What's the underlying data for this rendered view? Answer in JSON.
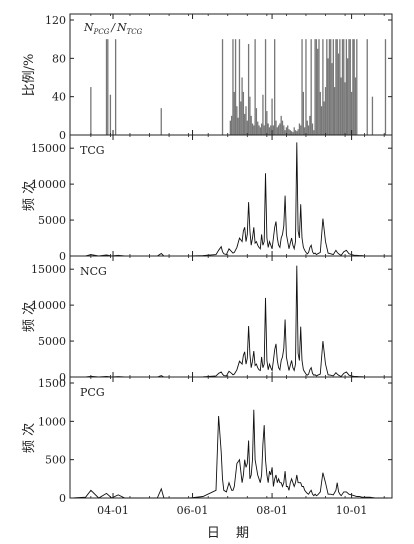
{
  "chart_data": [
    {
      "type": "bar",
      "panel": "ratio",
      "tag": "N_PCG / N_TCG",
      "tag_main_1": "N",
      "tag_sub_1": "PCG",
      "tag_sep": "/",
      "tag_main_2": "N",
      "tag_sub_2": "TCG",
      "ylabel": "比例/%",
      "ylim": [
        0,
        120
      ],
      "yticks": [
        0,
        40,
        80,
        120
      ],
      "ytick_labels": [
        "0",
        "40",
        "80",
        "120"
      ],
      "x_unit": "day-of-year (date axis)",
      "bar_color": "#777777",
      "x": [
        74,
        86,
        87,
        89,
        93,
        128,
        175,
        181,
        182,
        183,
        184,
        185,
        186,
        187,
        188,
        189,
        190,
        191,
        192,
        193,
        194,
        195,
        196,
        197,
        198,
        199,
        200,
        201,
        202,
        203,
        204,
        205,
        206,
        207,
        208,
        209,
        210,
        211,
        212,
        213,
        214,
        215,
        216,
        217,
        218,
        219,
        220,
        221,
        222,
        223,
        224,
        225,
        226,
        227,
        228,
        229,
        230,
        231,
        232,
        233,
        234,
        235,
        236,
        237,
        238,
        239,
        240,
        241,
        242,
        243,
        244,
        245,
        246,
        247,
        248,
        249,
        250,
        251,
        252,
        253,
        254,
        255,
        256,
        257,
        258,
        259,
        260,
        261,
        262,
        263,
        264,
        265,
        266,
        267,
        268,
        269,
        270,
        271,
        272,
        273,
        274,
        275,
        276,
        277,
        278,
        286,
        290,
        300
      ],
      "values": [
        50,
        100,
        100,
        42,
        100,
        28,
        100,
        15,
        20,
        100,
        45,
        100,
        30,
        18,
        100,
        35,
        60,
        45,
        22,
        30,
        15,
        95,
        40,
        20,
        12,
        10,
        100,
        28,
        14,
        10,
        8,
        12,
        42,
        10,
        100,
        25,
        12,
        8,
        10,
        38,
        10,
        100,
        15,
        8,
        10,
        12,
        20,
        15,
        10,
        5,
        8,
        10,
        6,
        5,
        4,
        3,
        8,
        5,
        4,
        6,
        12,
        10,
        100,
        45,
        8,
        100,
        15,
        10,
        20,
        100,
        12,
        5,
        100,
        100,
        90,
        100,
        45,
        30,
        100,
        35,
        50,
        100,
        80,
        100,
        100,
        75,
        100,
        50,
        100,
        100,
        85,
        100,
        60,
        100,
        100,
        55,
        100,
        80,
        100,
        100,
        45,
        100,
        100,
        60,
        100,
        100,
        40,
        100
      ]
    },
    {
      "type": "line",
      "panel": "TCG",
      "tag": "TCG",
      "ylabel": "频 次",
      "ylim": [
        0,
        16000
      ],
      "yticks": [
        0,
        5000,
        10000,
        15000
      ],
      "ytick_labels": [
        "0",
        "5000",
        "10000",
        "15000"
      ],
      "x": [
        60,
        70,
        74,
        80,
        86,
        90,
        95,
        100,
        110,
        120,
        125,
        128,
        130,
        140,
        150,
        160,
        170,
        172,
        174,
        175,
        176,
        178,
        180,
        182,
        183,
        184,
        186,
        188,
        190,
        191,
        192,
        193,
        194,
        195,
        196,
        197,
        198,
        199,
        200,
        201,
        202,
        203,
        204,
        205,
        206,
        207,
        208,
        209,
        210,
        211,
        212,
        213,
        214,
        215,
        216,
        217,
        218,
        219,
        220,
        221,
        222,
        223,
        224,
        225,
        226,
        227,
        228,
        229,
        230,
        231,
        232,
        233,
        234,
        235,
        236,
        237,
        238,
        239,
        240,
        241,
        242,
        243,
        244,
        245,
        246,
        247,
        248,
        250,
        252,
        254,
        256,
        258,
        260,
        262,
        263,
        264,
        265,
        266,
        268,
        270,
        272,
        274,
        276,
        278,
        280,
        282,
        284,
        286,
        288,
        290,
        292,
        294,
        296,
        298,
        300,
        303
      ],
      "values": [
        0,
        20,
        200,
        0,
        150,
        0,
        100,
        0,
        0,
        0,
        0,
        350,
        0,
        0,
        0,
        50,
        200,
        800,
        1300,
        600,
        300,
        200,
        1000,
        600,
        400,
        500,
        1200,
        2500,
        2000,
        3500,
        4000,
        2000,
        3000,
        7500,
        3500,
        1500,
        2500,
        4000,
        1800,
        2000,
        1500,
        1200,
        1000,
        3000,
        1500,
        2000,
        11500,
        2500,
        1200,
        2000,
        1500,
        1000,
        2500,
        4000,
        4800,
        2500,
        1500,
        1200,
        2500,
        3000,
        4200,
        8400,
        3000,
        2000,
        1000,
        1800,
        2500,
        1500,
        1000,
        2000,
        15800,
        3500,
        2500,
        7200,
        2500,
        1200,
        800,
        500,
        300,
        500,
        1200,
        1500,
        600,
        300,
        400,
        200,
        300,
        500,
        5200,
        2000,
        400,
        300,
        200,
        800,
        500,
        300,
        200,
        100,
        600,
        800,
        300,
        200,
        100,
        100,
        50,
        50,
        20,
        10,
        20,
        10,
        0,
        0,
        0,
        0,
        0,
        0
      ]
    },
    {
      "type": "line",
      "panel": "NCG",
      "tag": "NCG",
      "ylabel": "频 次",
      "ylim": [
        0,
        16000
      ],
      "yticks": [
        0,
        5000,
        10000,
        15000
      ],
      "ytick_labels": [
        "0",
        "5000",
        "10000",
        "15000"
      ],
      "x": [
        60,
        70,
        74,
        80,
        86,
        90,
        95,
        100,
        110,
        120,
        125,
        128,
        130,
        140,
        150,
        160,
        170,
        172,
        174,
        175,
        176,
        178,
        180,
        182,
        183,
        184,
        186,
        188,
        190,
        191,
        192,
        193,
        194,
        195,
        196,
        197,
        198,
        199,
        200,
        201,
        202,
        203,
        204,
        205,
        206,
        207,
        208,
        209,
        210,
        211,
        212,
        213,
        214,
        215,
        216,
        217,
        218,
        219,
        220,
        221,
        222,
        223,
        224,
        225,
        226,
        227,
        228,
        229,
        230,
        231,
        232,
        233,
        234,
        235,
        236,
        237,
        238,
        239,
        240,
        241,
        242,
        243,
        244,
        245,
        246,
        247,
        248,
        250,
        252,
        254,
        256,
        258,
        260,
        262,
        263,
        264,
        265,
        266,
        268,
        270,
        272,
        274,
        276,
        278,
        280,
        282,
        284,
        286,
        288,
        290,
        292,
        294,
        296,
        298,
        300,
        303
      ],
      "values": [
        0,
        10,
        100,
        0,
        80,
        0,
        50,
        0,
        0,
        0,
        0,
        200,
        0,
        0,
        0,
        30,
        150,
        500,
        700,
        400,
        200,
        150,
        800,
        500,
        300,
        400,
        1000,
        2200,
        1800,
        3000,
        3500,
        1800,
        2600,
        7100,
        3200,
        1300,
        2200,
        3600,
        1600,
        1800,
        1300,
        1000,
        900,
        2800,
        1300,
        1800,
        11000,
        2300,
        1000,
        1800,
        1300,
        900,
        2300,
        3800,
        4600,
        2300,
        1300,
        1000,
        2300,
        2800,
        4000,
        8000,
        2800,
        1800,
        900,
        1600,
        2300,
        1300,
        900,
        1800,
        15500,
        3300,
        2300,
        7000,
        2300,
        1000,
        700,
        400,
        250,
        400,
        1000,
        1300,
        500,
        250,
        300,
        150,
        250,
        400,
        5000,
        1800,
        300,
        250,
        150,
        600,
        400,
        250,
        150,
        80,
        500,
        700,
        250,
        150,
        80,
        80,
        40,
        40,
        15,
        8,
        15,
        8,
        0,
        0,
        0,
        0,
        0,
        0
      ]
    },
    {
      "type": "line",
      "panel": "PCG",
      "tag": "PCG",
      "ylabel": "频 次",
      "ylim": [
        0,
        1500
      ],
      "yticks": [
        0,
        500,
        1000,
        1500
      ],
      "ytick_labels": [
        "0",
        "500",
        "1000",
        "1500"
      ],
      "xticks": [
        91,
        152,
        213,
        274
      ],
      "xtick_labels": [
        "04-01",
        "06-01",
        "08-01",
        "10-01"
      ],
      "xlabel": "日 期",
      "x": [
        60,
        70,
        74,
        80,
        86,
        90,
        95,
        100,
        110,
        120,
        125,
        128,
        130,
        140,
        150,
        160,
        170,
        172,
        174,
        175,
        176,
        178,
        180,
        182,
        183,
        184,
        186,
        188,
        190,
        191,
        192,
        193,
        194,
        195,
        196,
        197,
        198,
        199,
        200,
        201,
        202,
        203,
        204,
        205,
        206,
        207,
        208,
        209,
        210,
        211,
        212,
        213,
        214,
        215,
        216,
        217,
        218,
        219,
        220,
        221,
        222,
        223,
        224,
        225,
        226,
        227,
        228,
        229,
        230,
        231,
        232,
        233,
        234,
        235,
        236,
        237,
        238,
        239,
        240,
        241,
        242,
        243,
        244,
        245,
        246,
        247,
        248,
        250,
        252,
        254,
        256,
        258,
        260,
        262,
        263,
        264,
        265,
        266,
        268,
        270,
        272,
        274,
        276,
        278,
        280,
        282,
        284,
        286,
        288,
        290,
        292,
        294,
        296,
        298,
        300,
        303
      ],
      "values": [
        0,
        10,
        100,
        0,
        60,
        0,
        40,
        0,
        0,
        0,
        0,
        120,
        0,
        0,
        0,
        20,
        100,
        1070,
        600,
        250,
        100,
        80,
        200,
        100,
        100,
        150,
        450,
        500,
        200,
        300,
        500,
        400,
        450,
        750,
        250,
        300,
        500,
        1150,
        500,
        400,
        300,
        250,
        200,
        300,
        700,
        950,
        500,
        300,
        200,
        350,
        300,
        400,
        150,
        250,
        300,
        200,
        250,
        200,
        200,
        150,
        200,
        350,
        150,
        150,
        100,
        200,
        250,
        200,
        150,
        200,
        300,
        200,
        200,
        200,
        150,
        150,
        100,
        80,
        60,
        50,
        80,
        100,
        50,
        30,
        50,
        30,
        40,
        80,
        330,
        200,
        50,
        50,
        40,
        100,
        200,
        80,
        50,
        30,
        80,
        80,
        50,
        40,
        30,
        20,
        20,
        10,
        10,
        10,
        10,
        5,
        0,
        0,
        0,
        0,
        0,
        0
      ]
    }
  ]
}
